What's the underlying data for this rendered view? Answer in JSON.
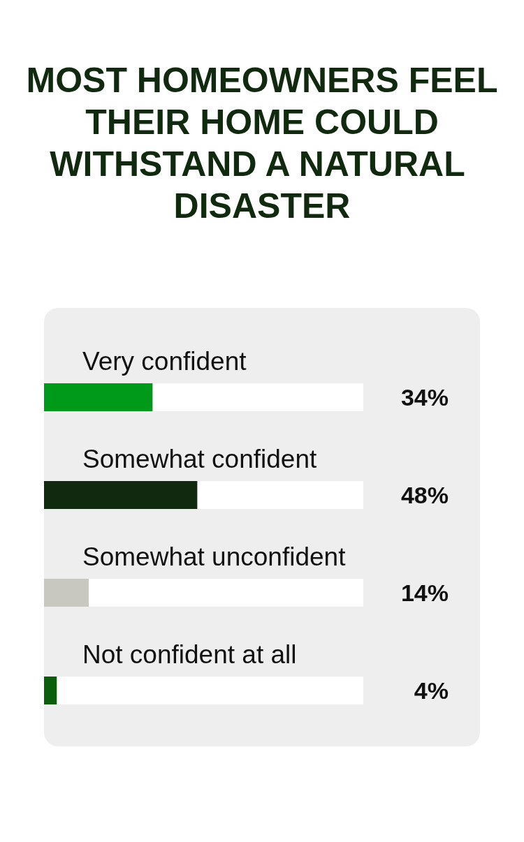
{
  "chart_data": {
    "type": "bar",
    "orientation": "horizontal",
    "title": "MOST HOMEOWNERS FEEL THEIR HOME COULD WITHSTAND A NATURAL DISASTER",
    "categories": [
      "Very confident",
      "Somewhat confident",
      "Somewhat unconfident",
      "Not confident at all"
    ],
    "values": [
      34,
      48,
      14,
      4
    ],
    "colors": [
      "#009a1a",
      "#10290f",
      "#c8c8c0",
      "#0b5e0b"
    ],
    "value_labels": [
      "34%",
      "48%",
      "14%",
      "4%"
    ],
    "xlim": [
      0,
      100
    ]
  }
}
